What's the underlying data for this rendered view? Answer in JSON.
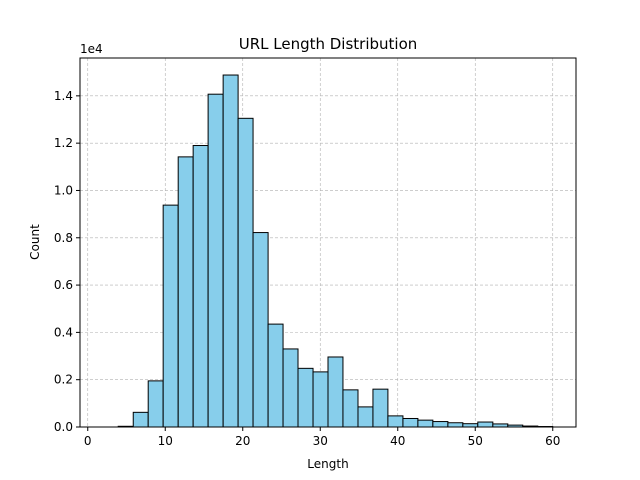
{
  "chart_data": {
    "type": "bar",
    "title": "URL Length Distribution",
    "xlabel": "Length",
    "ylabel": "Count",
    "y_scale_label": "1e4",
    "xlim": [
      -1.0,
      63.0
    ],
    "ylim": [
      0,
      15600
    ],
    "xticks": [
      0,
      10,
      20,
      30,
      40,
      50,
      60
    ],
    "xtick_labels": [
      "0",
      "10",
      "20",
      "30",
      "40",
      "50",
      "60"
    ],
    "yticks": [
      0,
      2000,
      4000,
      6000,
      8000,
      10000,
      12000,
      14000
    ],
    "ytick_labels": [
      "0.0",
      "0.2",
      "0.4",
      "0.6",
      "0.8",
      "1.0",
      "1.2",
      "1.4"
    ],
    "grid": true,
    "bar_color": "#87ceeb",
    "edge_color": "#000000",
    "bins": [
      {
        "x0": 2.0,
        "x1": 3.93,
        "value": 0
      },
      {
        "x0": 3.93,
        "x1": 5.87,
        "value": 30
      },
      {
        "x0": 5.87,
        "x1": 7.8,
        "value": 620
      },
      {
        "x0": 7.8,
        "x1": 9.73,
        "value": 1950
      },
      {
        "x0": 9.73,
        "x1": 11.67,
        "value": 9380
      },
      {
        "x0": 11.67,
        "x1": 13.6,
        "value": 11420
      },
      {
        "x0": 13.6,
        "x1": 15.53,
        "value": 11900
      },
      {
        "x0": 15.53,
        "x1": 17.47,
        "value": 14070
      },
      {
        "x0": 17.47,
        "x1": 19.4,
        "value": 14880
      },
      {
        "x0": 19.4,
        "x1": 21.33,
        "value": 13050
      },
      {
        "x0": 21.33,
        "x1": 23.27,
        "value": 8220
      },
      {
        "x0": 23.27,
        "x1": 25.2,
        "value": 4350
      },
      {
        "x0": 25.2,
        "x1": 27.13,
        "value": 3300
      },
      {
        "x0": 27.13,
        "x1": 29.07,
        "value": 2480
      },
      {
        "x0": 29.07,
        "x1": 31.0,
        "value": 2330
      },
      {
        "x0": 31.0,
        "x1": 32.93,
        "value": 2960
      },
      {
        "x0": 32.93,
        "x1": 34.87,
        "value": 1570
      },
      {
        "x0": 34.87,
        "x1": 36.8,
        "value": 850
      },
      {
        "x0": 36.8,
        "x1": 38.73,
        "value": 1600
      },
      {
        "x0": 38.73,
        "x1": 40.67,
        "value": 470
      },
      {
        "x0": 40.67,
        "x1": 42.6,
        "value": 360
      },
      {
        "x0": 42.6,
        "x1": 44.53,
        "value": 290
      },
      {
        "x0": 44.53,
        "x1": 46.47,
        "value": 230
      },
      {
        "x0": 46.47,
        "x1": 48.4,
        "value": 180
      },
      {
        "x0": 48.4,
        "x1": 50.33,
        "value": 140
      },
      {
        "x0": 50.33,
        "x1": 52.27,
        "value": 210
      },
      {
        "x0": 52.27,
        "x1": 54.2,
        "value": 130
      },
      {
        "x0": 54.2,
        "x1": 56.13,
        "value": 80
      },
      {
        "x0": 56.13,
        "x1": 58.07,
        "value": 40
      },
      {
        "x0": 58.07,
        "x1": 60.0,
        "value": 20
      }
    ]
  }
}
